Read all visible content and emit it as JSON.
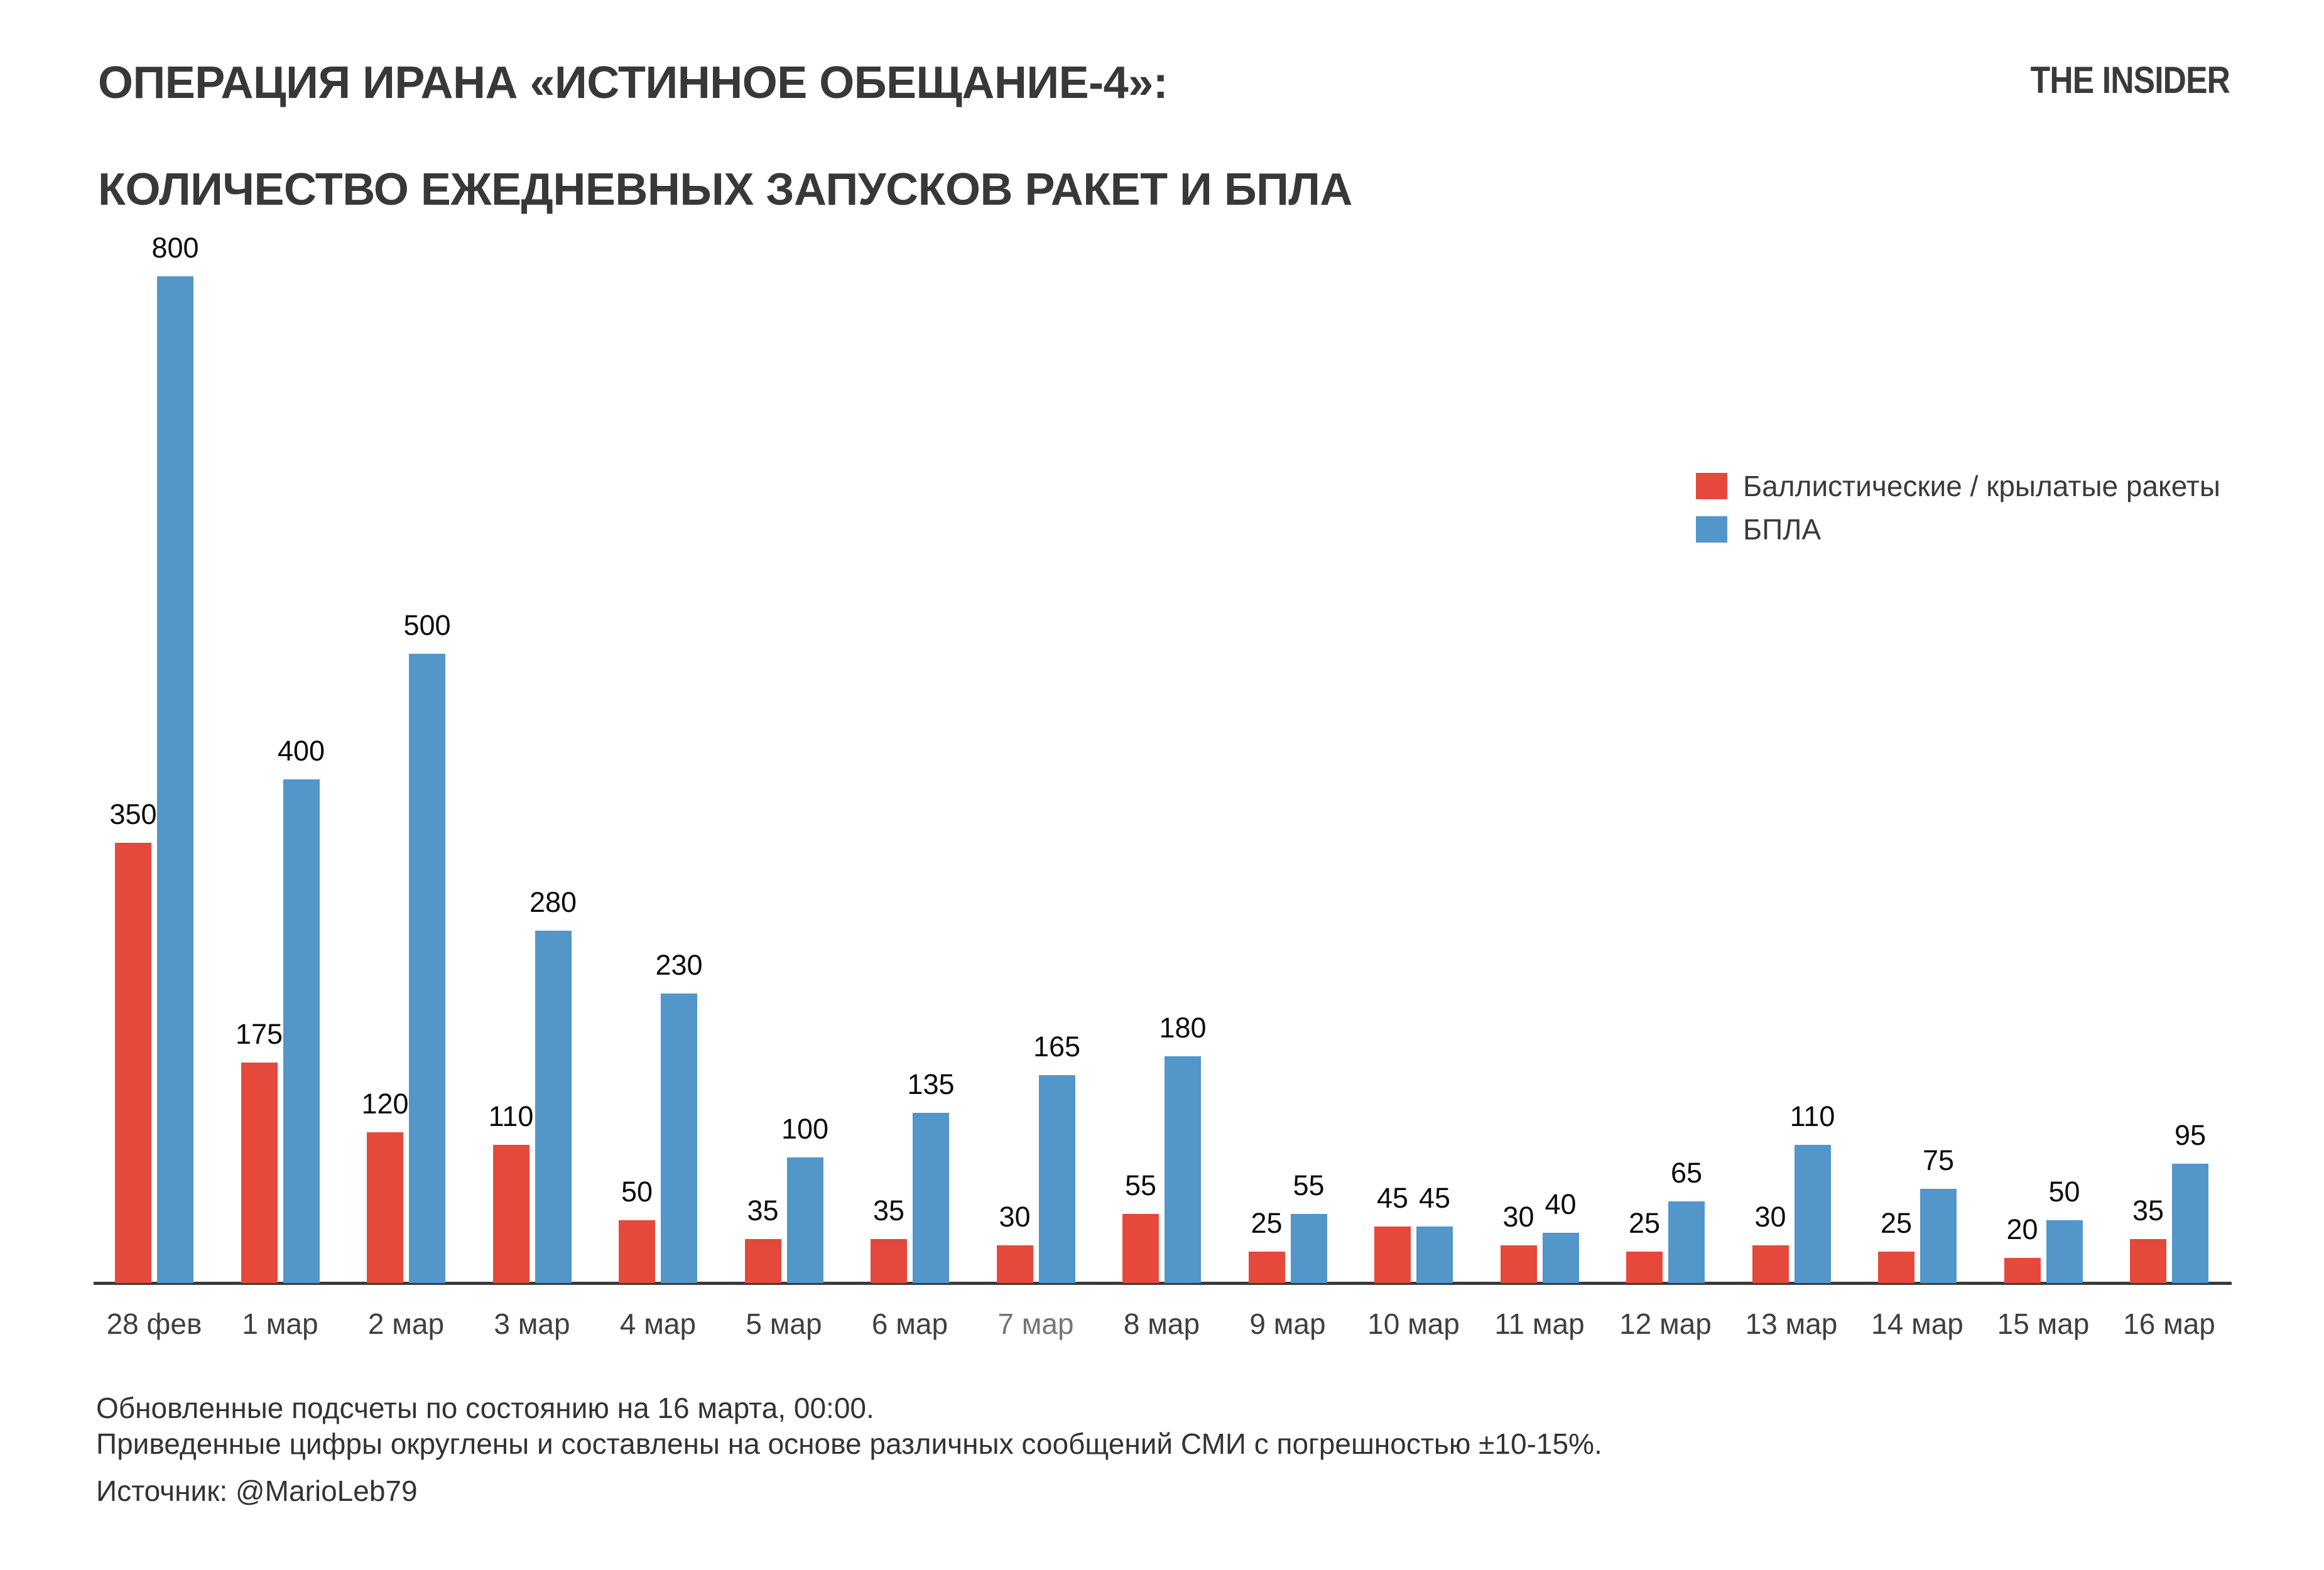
{
  "header": {
    "title_lines": [
      "ОПЕРАЦИЯ ИРАНА «ИСТИННОЕ ОБЕЩАНИЕ-4»:",
      "КОЛИЧЕСТВО ЕЖЕДНЕВНЫХ ЗАПУСКОВ РАКЕТ И БПЛА"
    ],
    "brand": "THE INSIDER"
  },
  "legend": {
    "items": [
      {
        "label": "Баллистические / крылатые ракеты"
      },
      {
        "label": "БПЛА"
      }
    ]
  },
  "chart_data": {
    "type": "bar",
    "title": "ОПЕРАЦИЯ ИРАНА «ИСТИННОЕ ОБЕЩАНИЕ-4»: КОЛИЧЕСТВО ЕЖЕДНЕВНЫХ ЗАПУСКОВ РАКЕТ И БПЛА",
    "categories": [
      "28 фев",
      "1 мар",
      "2 мар",
      "3 мар",
      "4 мар",
      "5 мар",
      "6 мар",
      "7 мар",
      "8 мар",
      "9 мар",
      "10 мар",
      "11 мар",
      "12 мар",
      "13 мар",
      "14 мар",
      "15 мар",
      "16 мар"
    ],
    "muted_category": "7 мар",
    "series": [
      {
        "name": "Баллистические / крылатые ракеты",
        "color": "#E4493C",
        "values": [
          350,
          175,
          120,
          110,
          50,
          35,
          35,
          30,
          55,
          25,
          45,
          30,
          25,
          30,
          25,
          20,
          35
        ]
      },
      {
        "name": "БПЛА",
        "color": "#5396C9",
        "values": [
          800,
          400,
          500,
          280,
          230,
          100,
          135,
          165,
          180,
          55,
          45,
          40,
          65,
          110,
          75,
          50,
          95
        ]
      }
    ],
    "xlabel": "",
    "ylabel": "",
    "ylim": [
      0,
      800
    ],
    "grid": false,
    "legend_position": "right",
    "value_labels": true,
    "colors": {
      "axis": "#3a3a3a",
      "value_label": "#0a0a0a",
      "tick_label": "#3f3f3f",
      "tick_label_muted": "#757575"
    }
  },
  "footer": {
    "lines": [
      "Обновленные подсчеты по состоянию на 16 марта, 00:00.",
      "Приведенные цифры округлены и составлены на основе различных сообщений СМИ с погрешностью ±10-15%.",
      "Источник: @MarioLeb79"
    ]
  }
}
